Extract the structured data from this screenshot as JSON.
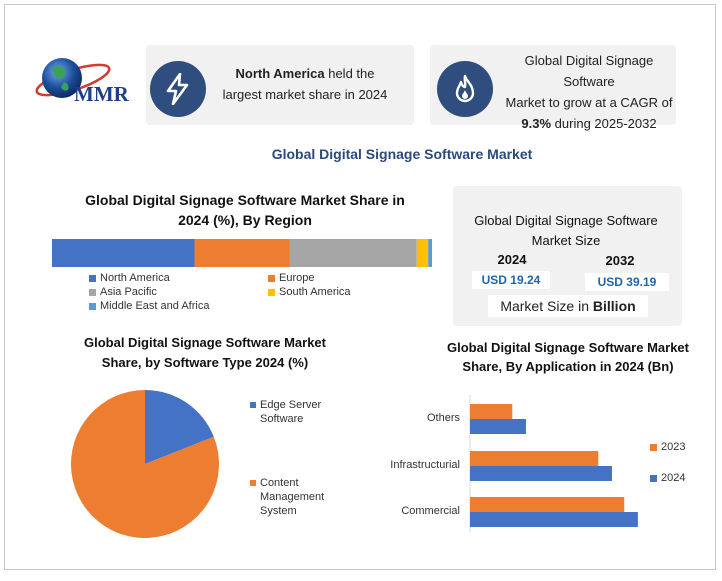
{
  "colors": {
    "blue": "#4472c4",
    "orange": "#ed7d31",
    "gray": "#a5a5a5",
    "yellow": "#ffc000",
    "lightblue": "#5b9bd5",
    "navy": "#2f4d7e",
    "accent_blue": "#1f65a8"
  },
  "logo": {
    "text": "MMR"
  },
  "box1": {
    "bold": "North America",
    "rest": " held the",
    "line2": "largest market share in 2024",
    "icon": "lightning-bolt-icon"
  },
  "box2": {
    "line1": "Global Digital Signage Software",
    "line2": "Market to grow at a CAGR of",
    "cagr": "9.3%",
    "line3_rest": " during 2025-2032",
    "icon": "flame-icon"
  },
  "main_title": "Global Digital Signage Software Market",
  "size_box": {
    "title": "Global Digital Signage Software Market Size",
    "year1": "2024",
    "value1": "USD 19.24",
    "year2": "2032",
    "value2": "USD 39.19",
    "footer_prefix": "Market Size in ",
    "footer_bold": "Billion"
  },
  "chart_data": [
    {
      "type": "bar",
      "orientation": "horizontal-stacked-100",
      "title": "Global Digital Signage Software Market Share in 2024 (%), By Region",
      "series": [
        {
          "name": "North America",
          "values": [
            37.5
          ]
        },
        {
          "name": "Europe",
          "values": [
            25.0
          ]
        },
        {
          "name": "Asia Pacific",
          "values": [
            33.5
          ]
        },
        {
          "name": "South America",
          "values": [
            3.0
          ]
        },
        {
          "name": "Middle East and Africa",
          "values": [
            1.0
          ]
        }
      ],
      "legend_position": "bottom"
    },
    {
      "type": "pie",
      "title": "Global Digital Signage Software Market Share, by Software Type 2024 (%)",
      "categories": [
        "Edge Server Software",
        "Content Management System"
      ],
      "values": [
        19,
        81
      ],
      "legend_position": "right"
    },
    {
      "type": "bar",
      "orientation": "horizontal",
      "title": "Global Digital Signage Software Market Share, By Application in 2024 (Bn)",
      "categories": [
        "Others",
        "Infrastructurial",
        "Commercial"
      ],
      "series": [
        {
          "name": "2023",
          "values": [
            3.1,
            9.4,
            11.3
          ]
        },
        {
          "name": "2024",
          "values": [
            4.1,
            10.4,
            12.3
          ]
        }
      ],
      "grid": false,
      "legend_position": "right"
    }
  ]
}
